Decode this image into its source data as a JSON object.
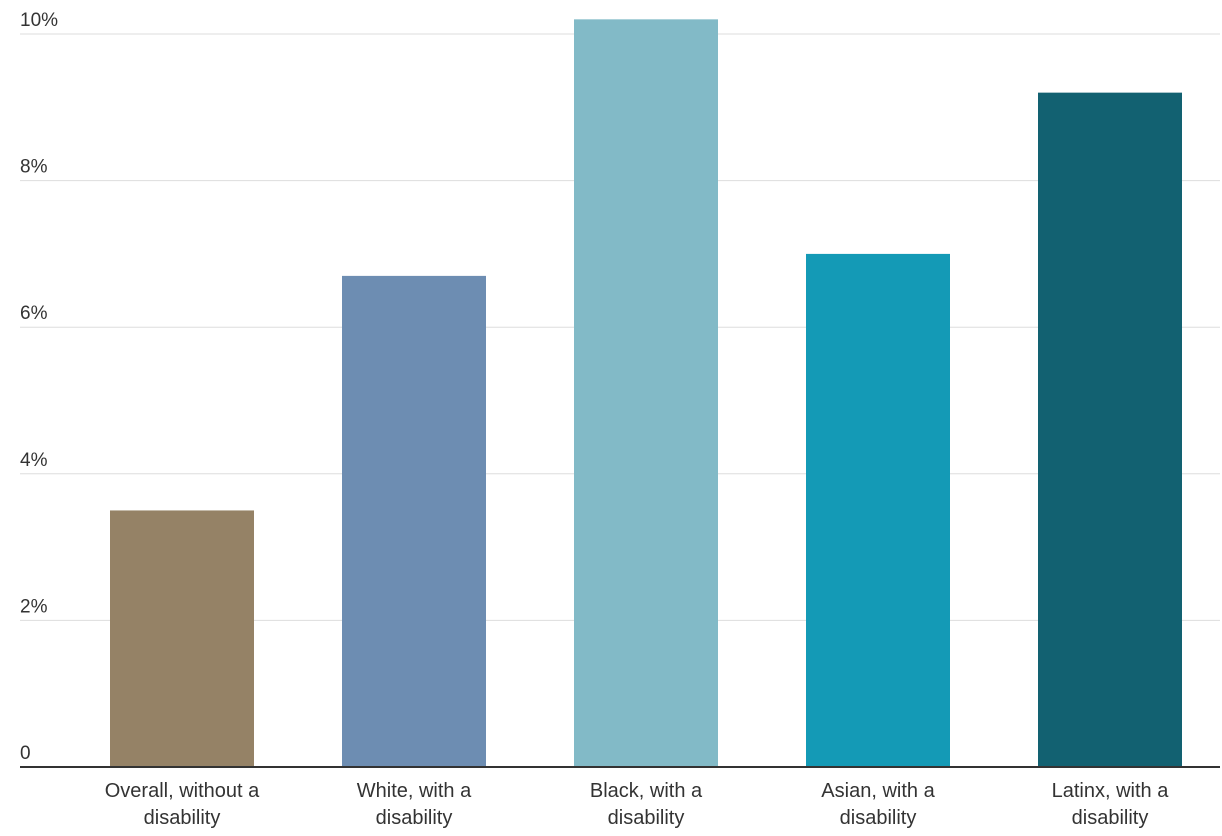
{
  "chart_data": {
    "type": "bar",
    "title": "",
    "xlabel": "",
    "ylabel": "",
    "ylim": [
      0,
      10
    ],
    "grid": true,
    "y_ticks": [
      {
        "value": 0,
        "label": "0"
      },
      {
        "value": 2,
        "label": "2%"
      },
      {
        "value": 4,
        "label": "4%"
      },
      {
        "value": 6,
        "label": "6%"
      },
      {
        "value": 8,
        "label": "8%"
      },
      {
        "value": 10,
        "label": "10%"
      }
    ],
    "categories": [
      [
        "Overall, without a",
        "disability"
      ],
      [
        "White, with a",
        "disability"
      ],
      [
        "Black, with a",
        "disability"
      ],
      [
        "Asian, with a",
        "disability"
      ],
      [
        "Latinx, with a",
        "disability"
      ]
    ],
    "values": [
      3.5,
      6.7,
      10.2,
      7.0,
      9.2
    ],
    "colors": [
      "#958266",
      "#6d8db2",
      "#82bac7",
      "#149ab6",
      "#126171"
    ]
  }
}
